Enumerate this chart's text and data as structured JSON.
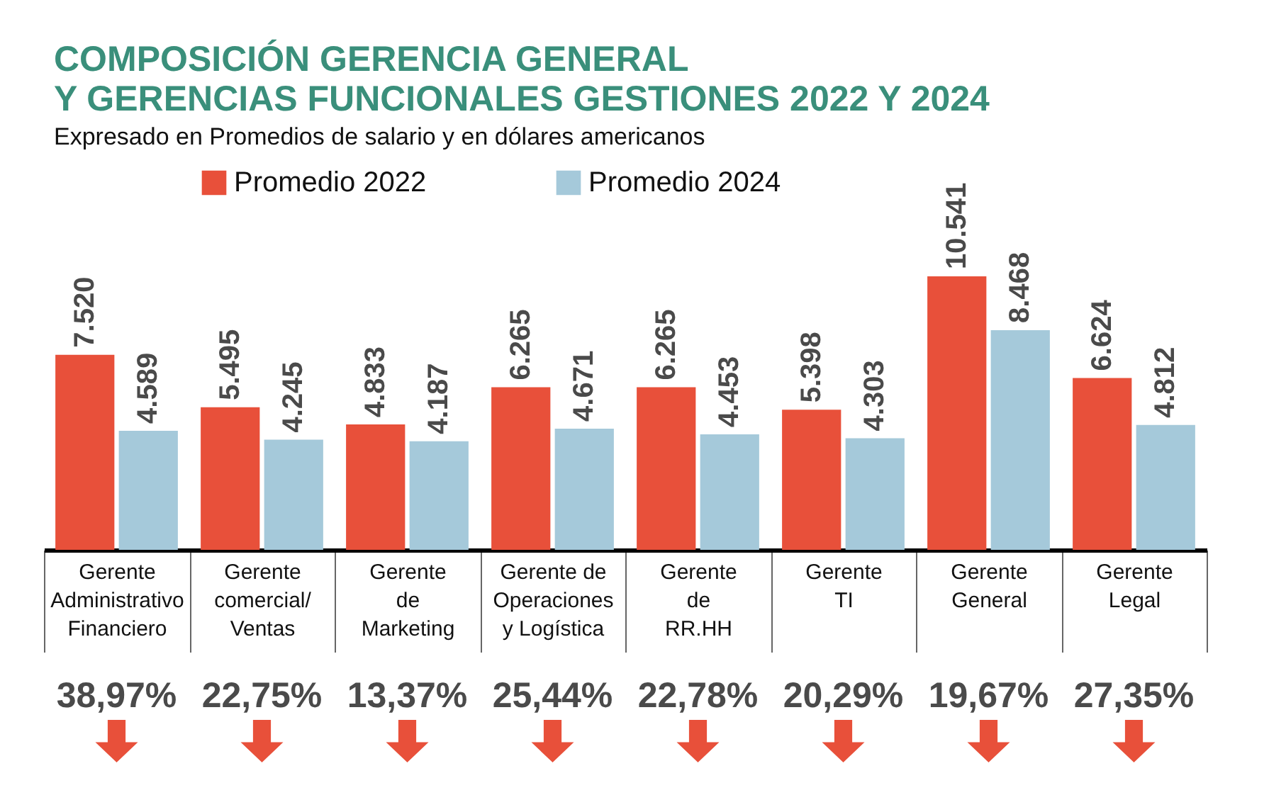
{
  "chart_data": {
    "type": "bar",
    "title": "COMPOSICIÓN GERENCIA GENERAL\nY GERENCIAS FUNCIONALES GESTIONES 2022 Y 2024",
    "subtitle": "Expresado en Promedios de salario y en dólares americanos",
    "categories": [
      "Gerente\nAdministrativo\nFinanciero",
      "Gerente\ncomercial/\nVentas",
      "Gerente\nde\nMarketing",
      "Gerente de\nOperaciones\ny  Logística",
      "Gerente\nde\nRR.HH",
      "Gerente\nTI",
      "Gerente\nGeneral",
      "Gerente\nLegal"
    ],
    "series": [
      {
        "name": "Promedio 2022",
        "color": "#e8503a",
        "values": [
          7520,
          5495,
          4833,
          6265,
          6265,
          5398,
          10541,
          6624
        ],
        "value_labels": [
          "7.520",
          "5.495",
          "4.833",
          "6.265",
          "6.265",
          "5.398",
          "10.541",
          "6.624"
        ]
      },
      {
        "name": "Promedio 2024",
        "color": "#a5c9da",
        "values": [
          4589,
          4245,
          4187,
          4671,
          4453,
          4303,
          8468,
          4812
        ],
        "value_labels": [
          "4.589",
          "4.245",
          "4.187",
          "4.671",
          "4.453",
          "4.303",
          "8.468",
          "4.812"
        ]
      }
    ],
    "annotations": [
      "38,97%",
      "22,75%",
      "13,37%",
      "25,44%",
      "22,78%",
      "20,29%",
      "19,67%",
      "27,35%"
    ],
    "legend": "top",
    "tick_labels": "x"
  }
}
